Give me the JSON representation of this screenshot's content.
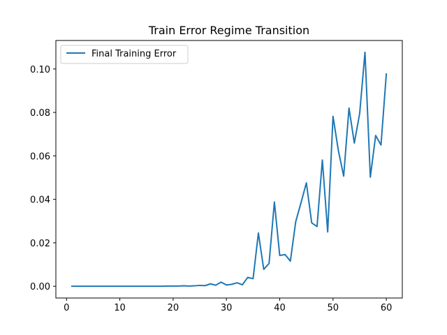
{
  "chart_data": {
    "type": "line",
    "title": "Train Error Regime Transition",
    "xlabel": "",
    "ylabel": "",
    "xlim": [
      -2,
      63
    ],
    "ylim": [
      -0.0054,
      0.1131
    ],
    "xticks": [
      0,
      10,
      20,
      30,
      40,
      50,
      60
    ],
    "yticks": [
      0.0,
      0.02,
      0.04,
      0.06,
      0.08,
      0.1
    ],
    "ytick_labels": [
      "0.00",
      "0.02",
      "0.04",
      "0.06",
      "0.08",
      "0.10"
    ],
    "grid": false,
    "legend_position": "top-left",
    "series": [
      {
        "name": "Final Training Error",
        "color": "#1f77b4",
        "x": [
          1,
          2,
          3,
          4,
          5,
          6,
          7,
          8,
          9,
          10,
          11,
          12,
          13,
          14,
          15,
          16,
          17,
          18,
          19,
          20,
          21,
          22,
          23,
          24,
          25,
          26,
          27,
          28,
          29,
          30,
          31,
          32,
          33,
          34,
          35,
          36,
          37,
          38,
          39,
          40,
          41,
          42,
          43,
          44,
          45,
          46,
          47,
          48,
          49,
          50,
          51,
          52,
          53,
          54,
          55,
          56,
          57,
          58,
          59,
          60
        ],
        "y": [
          0.0,
          0.0,
          0.0,
          0.0,
          0.0,
          0.0,
          0.0,
          0.0,
          0.0,
          0.0,
          0.0,
          0.0,
          0.0,
          0.0,
          0.0,
          0.0,
          0.0,
          0.0,
          0.0001,
          0.0001,
          0.0001,
          0.0002,
          0.0001,
          0.0002,
          0.0004,
          0.0003,
          0.0011,
          0.0005,
          0.0019,
          0.0006,
          0.0009,
          0.0016,
          0.0007,
          0.0041,
          0.0035,
          0.0245,
          0.0078,
          0.0105,
          0.0388,
          0.0142,
          0.0146,
          0.0116,
          0.0297,
          0.0385,
          0.0476,
          0.0292,
          0.0275,
          0.0581,
          0.025,
          0.0782,
          0.0625,
          0.0507,
          0.082,
          0.0659,
          0.0795,
          0.1077,
          0.0502,
          0.0694,
          0.065,
          0.0977
        ]
      }
    ]
  }
}
